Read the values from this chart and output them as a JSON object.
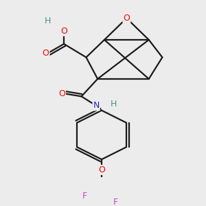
{
  "bg_color": "#ececec",
  "atom_colors": {
    "C": "#1a1a1a",
    "O": "#ff0000",
    "N": "#2222cc",
    "H": "#4a9090",
    "F": "#cc44cc"
  },
  "line_color": "#1a1a1a",
  "line_width": 1.6
}
